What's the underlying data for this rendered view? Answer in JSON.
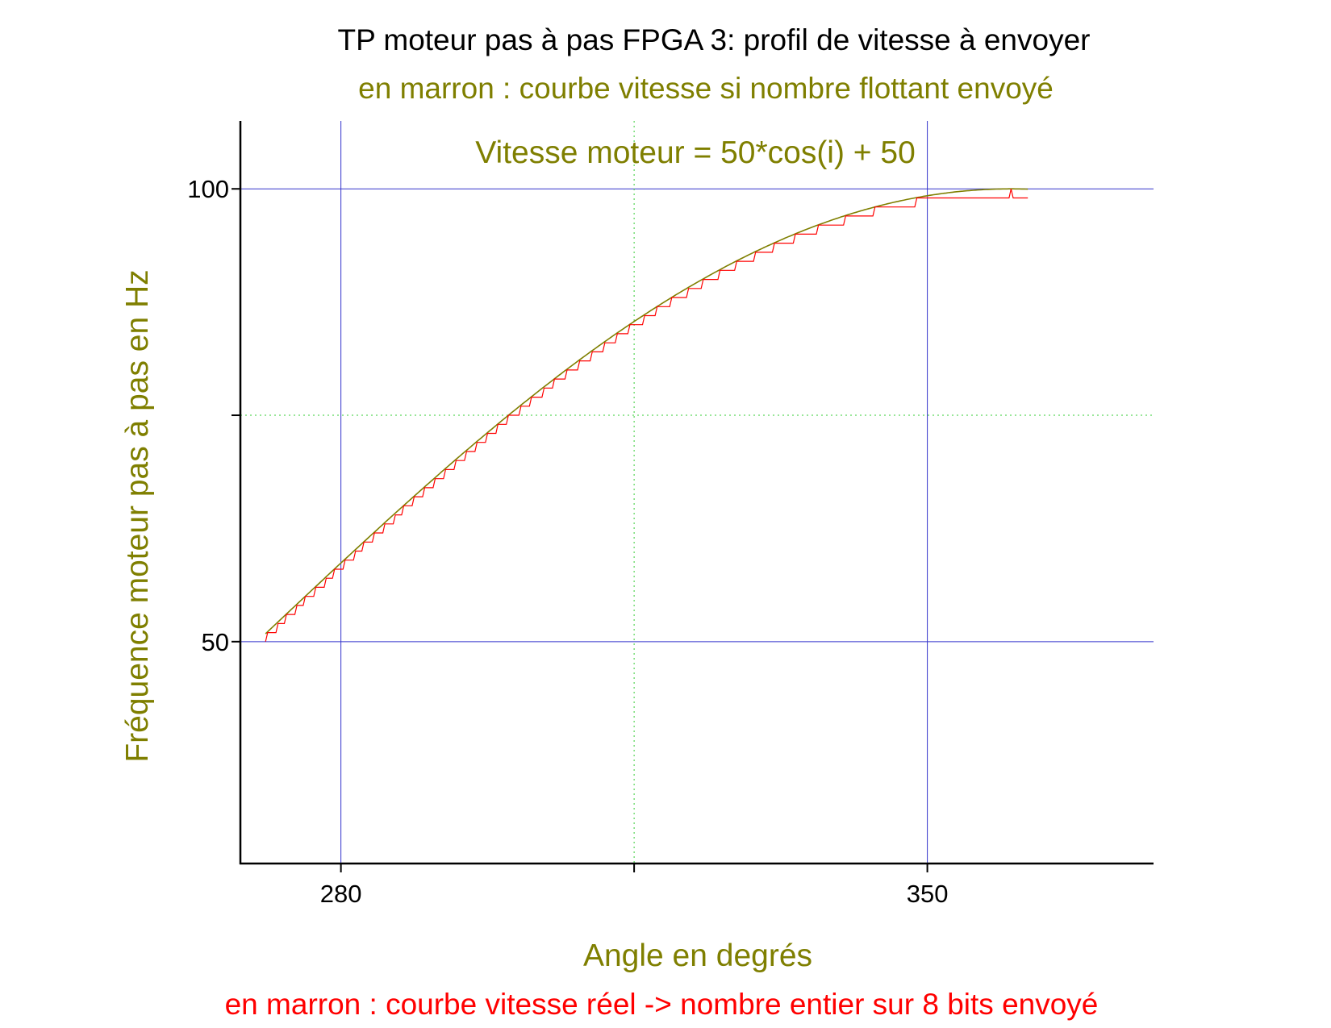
{
  "chart_data": {
    "type": "line",
    "title": "TP moteur pas à pas FPGA 3: profil de vitesse à envoyer",
    "subtitle": "en marron : courbe vitesse si nombre flottant envoyé",
    "annotation": "Vitesse moteur = 50*cos(i) + 50",
    "footer": "en marron : courbe vitesse réel -> nombre entier sur 8 bits envoyé",
    "xlabel": "Angle en degrés",
    "ylabel": "Fréquence moteur pas à pas en Hz",
    "xlim": [
      268,
      377
    ],
    "ylim": [
      25.5,
      107.5
    ],
    "x_ticks": [
      {
        "value": 280,
        "label": "280"
      },
      {
        "value": 315,
        "label": ""
      },
      {
        "value": 350,
        "label": "350"
      }
    ],
    "y_ticks": [
      {
        "value": 50,
        "label": "50"
      },
      {
        "value": 75,
        "label": ""
      },
      {
        "value": 100,
        "label": "100"
      }
    ],
    "grid": {
      "major_x": [
        280,
        350
      ],
      "major_y": [
        50,
        100
      ],
      "minor_x": [
        315
      ],
      "minor_y": [
        75
      ]
    },
    "x_range": [
      271,
      362
    ],
    "formula": "50*cos(x)+50",
    "series": [
      {
        "kind": "float",
        "color": "#7f7f00"
      },
      {
        "kind": "integer-8bit",
        "color": "#ff0000"
      }
    ],
    "colors": {
      "olive": "#7f7f00",
      "red": "#ff0000",
      "grid_major": "#3333cc",
      "grid_minor": "#33cc33",
      "axis": "#000000"
    }
  }
}
